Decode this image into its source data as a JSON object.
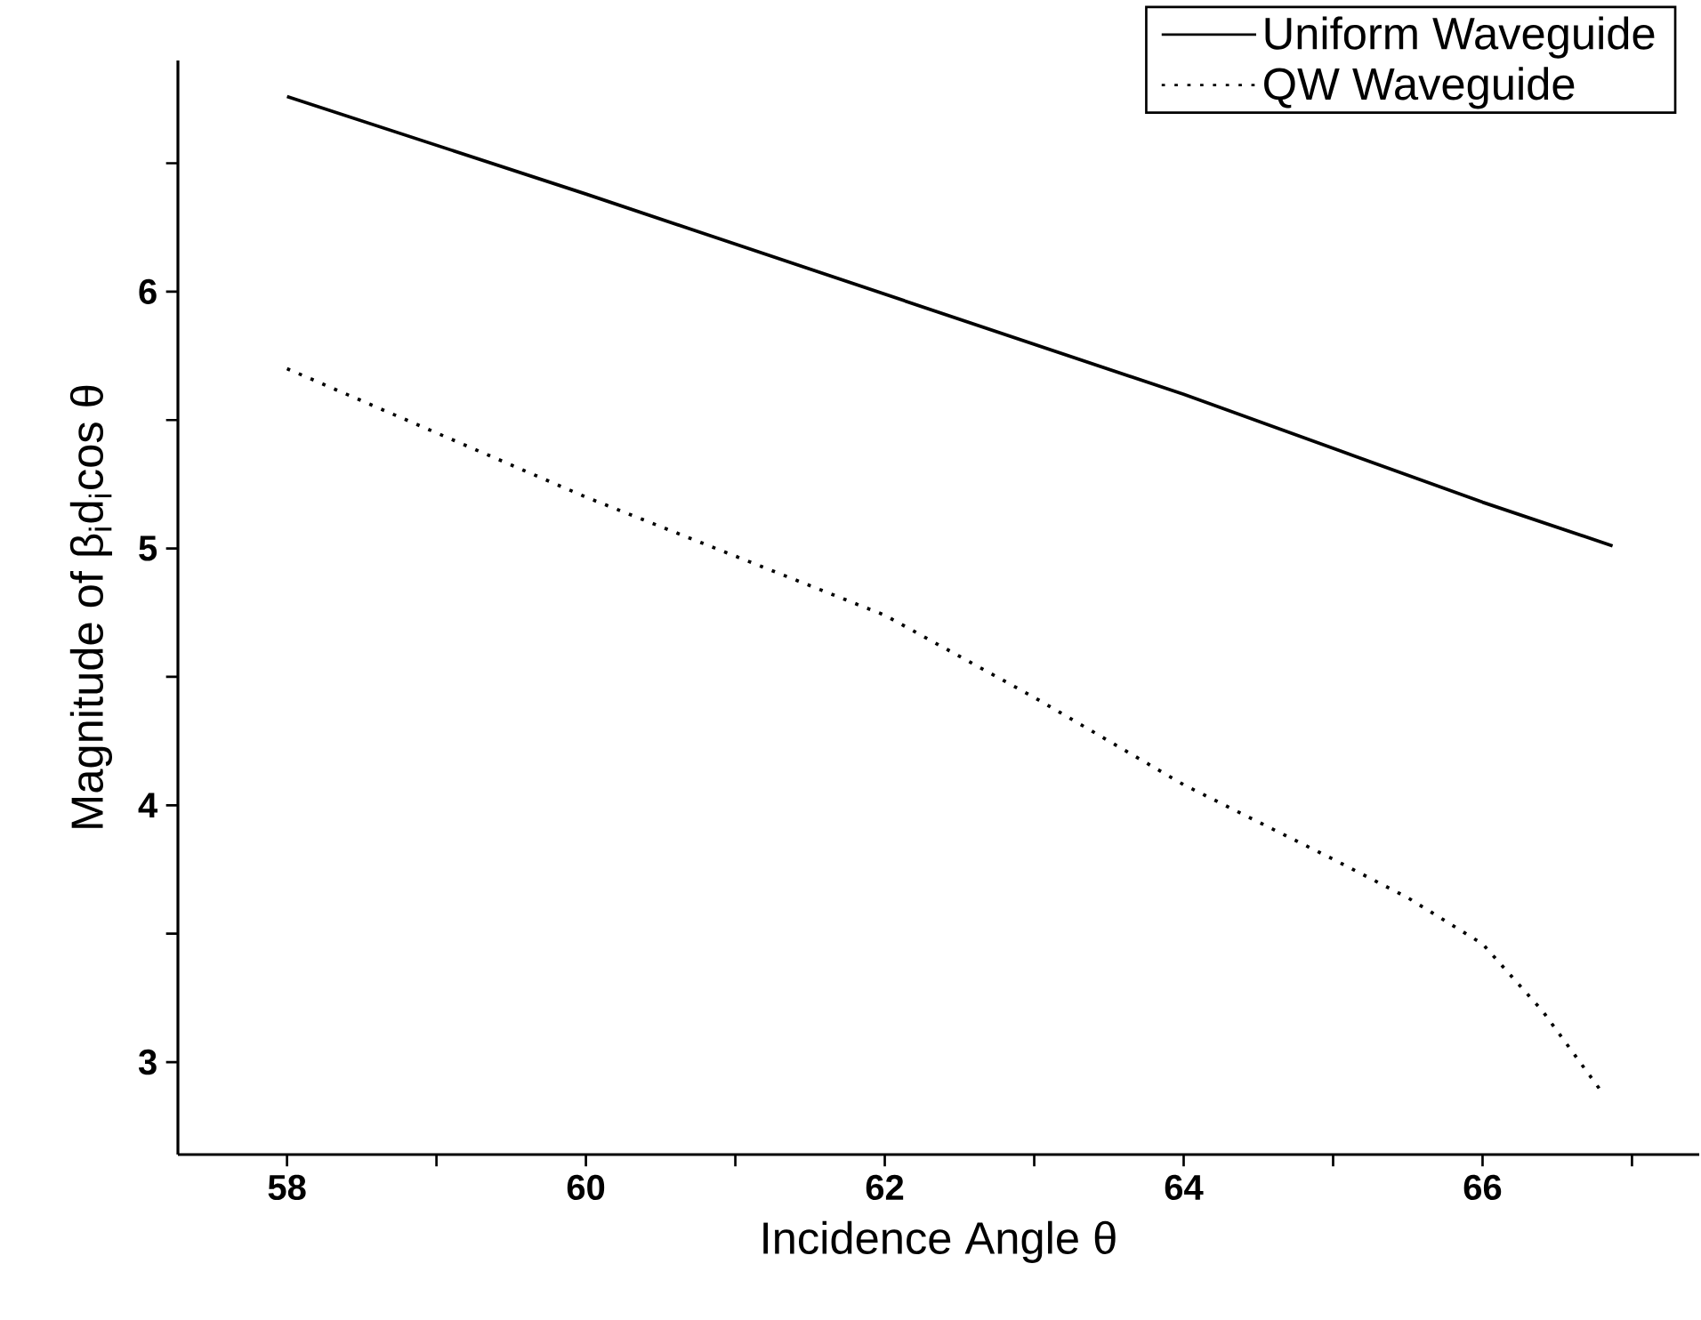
{
  "chart_data": {
    "type": "line",
    "xlabel": "Incidence Angle  θ",
    "ylabel": "Magnitude of  β$_{i}$d$_{i}$cos θ",
    "xlim": [
      57.27,
      67.45
    ],
    "ylim": [
      2.64,
      6.9
    ],
    "xticks": [
      {
        "value": 58,
        "label": "58"
      },
      {
        "value": 59,
        "label": null
      },
      {
        "value": 60,
        "label": "60"
      },
      {
        "value": 61,
        "label": null
      },
      {
        "value": 62,
        "label": "62"
      },
      {
        "value": 63,
        "label": null
      },
      {
        "value": 64,
        "label": "64"
      },
      {
        "value": 65,
        "label": null
      },
      {
        "value": 66,
        "label": "66"
      },
      {
        "value": 67,
        "label": null
      }
    ],
    "yticks": [
      {
        "value": 3,
        "label": "3"
      },
      {
        "value": 3.5,
        "label": null
      },
      {
        "value": 4,
        "label": "4"
      },
      {
        "value": 4.5,
        "label": null
      },
      {
        "value": 5,
        "label": "5"
      },
      {
        "value": 5.5,
        "label": null
      },
      {
        "value": 6,
        "label": "6"
      },
      {
        "value": 6.5,
        "label": null
      }
    ],
    "legend": "top right",
    "grid": false,
    "marker": "none",
    "series": [
      {
        "name": "Uniform Waveguide",
        "color": "#000000",
        "line_style": "solid",
        "x": [
          58,
          60,
          62,
          64,
          66,
          66.87
        ],
        "values": [
          6.76,
          6.38,
          5.99,
          5.6,
          5.18,
          5.01
        ]
      },
      {
        "name": "QW Waveguide",
        "color": "#000000",
        "line_style": "dotted",
        "x": [
          58,
          59,
          60,
          61,
          62,
          63,
          64,
          65,
          65.5,
          66,
          66.4,
          66.79
        ],
        "values": [
          5.7,
          5.45,
          5.2,
          4.97,
          4.74,
          4.42,
          4.08,
          3.79,
          3.64,
          3.46,
          3.2,
          2.89
        ]
      }
    ]
  }
}
